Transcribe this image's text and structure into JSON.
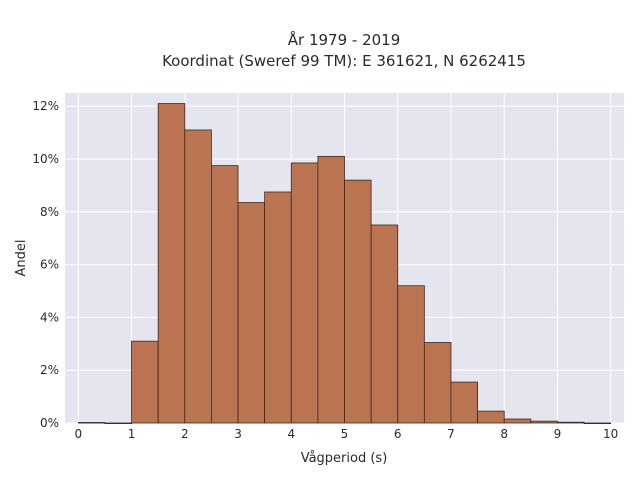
{
  "chart_data": {
    "type": "bar",
    "title_lines": [
      "År 1979 - 2019",
      "Koordinat (Sweref 99 TM): E 361621, N 6262415"
    ],
    "xlabel": "Vågperiod (s)",
    "ylabel": "Andel",
    "xlim": [
      -0.25,
      10.25
    ],
    "ylim": [
      0,
      12.5
    ],
    "x_ticks": [
      0,
      1,
      2,
      3,
      4,
      5,
      6,
      7,
      8,
      9,
      10
    ],
    "x_tick_labels": [
      "0",
      "1",
      "2",
      "3",
      "4",
      "5",
      "6",
      "7",
      "8",
      "9",
      "10"
    ],
    "y_ticks": [
      0,
      2,
      4,
      6,
      8,
      10,
      12
    ],
    "y_tick_labels": [
      "0%",
      "2%",
      "4%",
      "6%",
      "8%",
      "10%",
      "12%"
    ],
    "bin_width": 0.5,
    "bin_starts": [
      0,
      0.5,
      1,
      1.5,
      2,
      2.5,
      3,
      3.5,
      4,
      4.5,
      5,
      5.5,
      6,
      6.5,
      7,
      7.5,
      8,
      8.5,
      9,
      9.5
    ],
    "values": [
      0.02,
      0,
      3.1,
      12.1,
      11.1,
      9.75,
      8.35,
      8.75,
      9.85,
      10.1,
      9.2,
      7.5,
      5.2,
      3.05,
      1.55,
      0.45,
      0.15,
      0.07,
      0.03,
      0
    ],
    "grid": true,
    "colors": {
      "bar_fill": "#bb7451",
      "bar_edge": "#3a2a20",
      "plot_bg": "#e5e5ef",
      "grid": "#ffffff"
    }
  }
}
